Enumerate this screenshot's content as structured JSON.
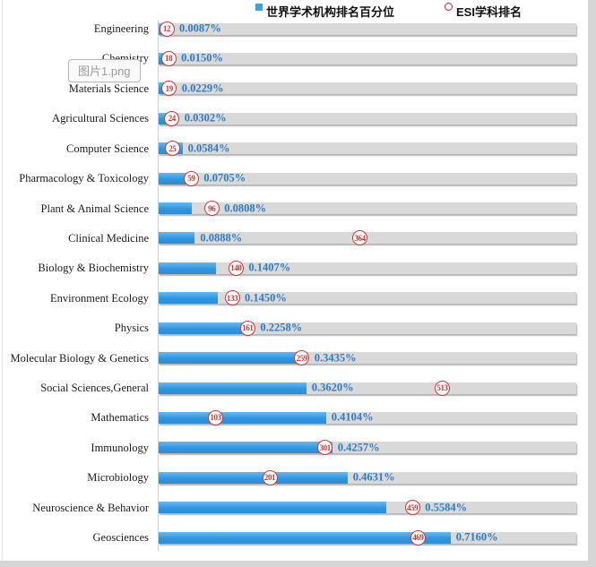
{
  "tooltip": {
    "filename": "图片1.png"
  },
  "legend": [
    {
      "label": "世界学术机构排名百分位",
      "marker": "blue-square",
      "color": "#3da0e6"
    },
    {
      "label": "ESI学科排名",
      "marker": "red-circle-outline",
      "color": "#cc2222"
    }
  ],
  "chart_data": {
    "type": "bar",
    "orientation": "horizontal",
    "series": [
      {
        "name": "世界学术机构排名百分位",
        "unit": "percent",
        "style": "blue-bar"
      },
      {
        "name": "ESI学科排名",
        "unit": "rank",
        "style": "red-circle-marker"
      }
    ],
    "xlim_percent": [
      0,
      1.02
    ],
    "grid": false,
    "legend_position": "top",
    "colors": {
      "bar": "#3da0e6",
      "track": "#d9d9d9",
      "percent_text": "#2d7cc7",
      "circle": "#c43b3b"
    },
    "rows": [
      {
        "category": "Engineering",
        "rank": 12,
        "percentile": 0.0087,
        "percent_label": "0.0087%"
      },
      {
        "category": "Chemistry",
        "rank": 18,
        "percentile": 0.015,
        "percent_label": "0.0150%"
      },
      {
        "category": "Materials Science",
        "rank": 19,
        "percentile": 0.0229,
        "percent_label": "0.0229%"
      },
      {
        "category": "Agricultural Sciences",
        "rank": 24,
        "percentile": 0.0302,
        "percent_label": "0.0302%"
      },
      {
        "category": "Computer Science",
        "rank": 25,
        "percentile": 0.0584,
        "percent_label": "0.0584%"
      },
      {
        "category": "Pharmacology & Toxicology",
        "rank": 59,
        "percentile": 0.0705,
        "percent_label": "0.0705%"
      },
      {
        "category": "Plant & Animal Science",
        "rank": 96,
        "percentile": 0.0808,
        "percent_label": "0.0808%"
      },
      {
        "category": "Clinical Medicine",
        "rank": 364,
        "percentile": 0.0888,
        "percent_label": "0.0888%"
      },
      {
        "category": "Biology & Biochemistry",
        "rank": 140,
        "percentile": 0.1407,
        "percent_label": "0.1407%"
      },
      {
        "category": "Environment Ecology",
        "rank": 133,
        "percentile": 0.145,
        "percent_label": "0.1450%"
      },
      {
        "category": "Physics",
        "rank": 161,
        "percentile": 0.2258,
        "percent_label": "0.2258%"
      },
      {
        "category": "Molecular Biology & Genetics",
        "rank": 259,
        "percentile": 0.3435,
        "percent_label": "0.3435%"
      },
      {
        "category": "Social Sciences,General",
        "rank": 513,
        "percentile": 0.362,
        "percent_label": "0.3620%"
      },
      {
        "category": "Mathematics",
        "rank": 103,
        "percentile": 0.4104,
        "percent_label": "0.4104%"
      },
      {
        "category": "Immunology",
        "rank": 301,
        "percentile": 0.4257,
        "percent_label": "0.4257%"
      },
      {
        "category": "Microbiology",
        "rank": 201,
        "percentile": 0.4631,
        "percent_label": "0.4631%"
      },
      {
        "category": "Neuroscience & Behavior",
        "rank": 459,
        "percentile": 0.5584,
        "percent_label": "0.5584%"
      },
      {
        "category": "Geosciences",
        "rank": 469,
        "percentile": 0.716,
        "percent_label": "0.7160%"
      }
    ]
  }
}
